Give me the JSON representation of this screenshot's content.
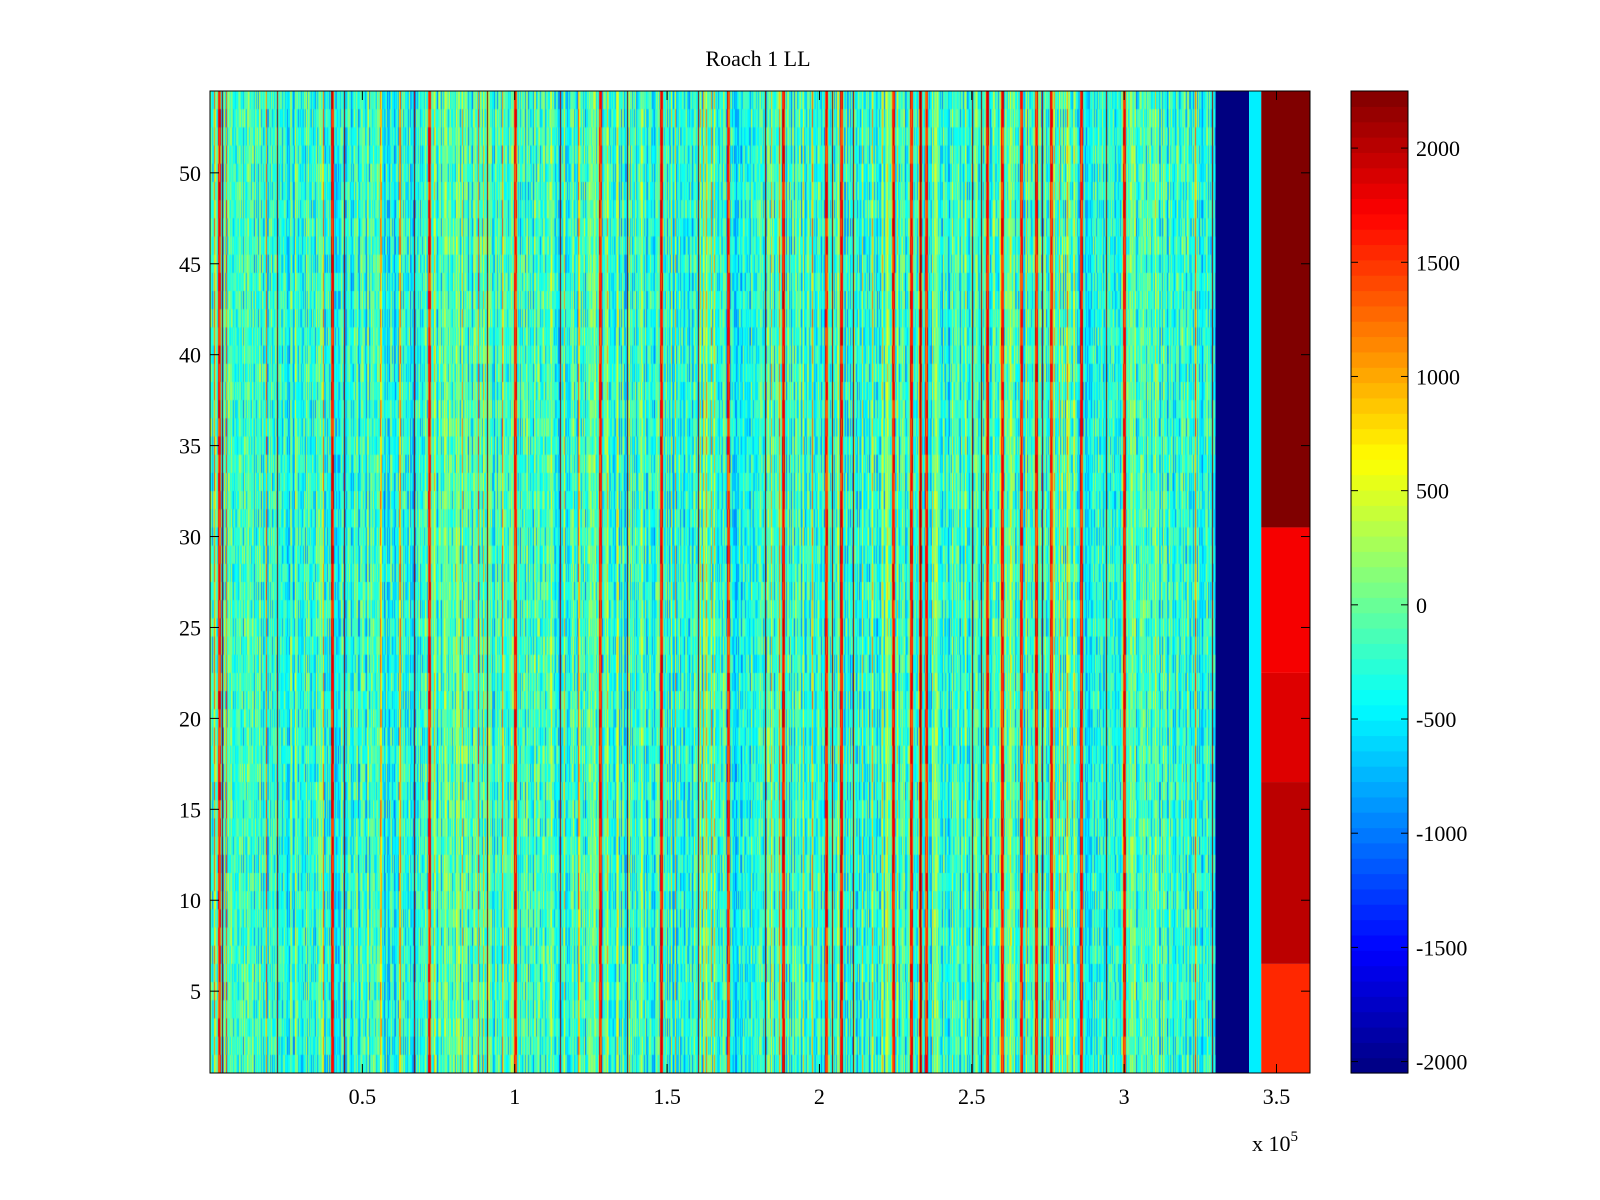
{
  "chart_data": {
    "type": "heatmap",
    "title": "Roach 1 LL",
    "xlabel": "",
    "ylabel": "",
    "x_exponent_label": "x 10",
    "x_exponent": "5",
    "x_range": [
      0,
      3.61
    ],
    "y_range": [
      0.5,
      54.5
    ],
    "x_ticks": [
      0.5,
      1,
      1.5,
      2,
      2.5,
      3,
      3.5
    ],
    "x_tick_labels": [
      "0.5",
      "1",
      "1.5",
      "2",
      "2.5",
      "3",
      "3.5"
    ],
    "y_ticks": [
      5,
      10,
      15,
      20,
      25,
      30,
      35,
      40,
      45,
      50
    ],
    "y_tick_labels": [
      "5",
      "10",
      "15",
      "20",
      "25",
      "30",
      "35",
      "40",
      "45",
      "50"
    ],
    "rows": 54,
    "colormap": "jet",
    "color_range": [
      -2050,
      2250
    ],
    "colorbar_ticks": [
      -2000,
      -1500,
      -1000,
      -500,
      0,
      500,
      1000,
      1500,
      2000
    ],
    "colorbar_tick_labels": [
      "-2000",
      "-1500",
      "-1000",
      "-500",
      "0",
      "500",
      "1000",
      "1500",
      "2000"
    ],
    "background_value": -250,
    "dark_vertical_lines_x": [
      0.04,
      0.22,
      0.44,
      0.67,
      0.91,
      1.15,
      1.37,
      1.6,
      1.82,
      2.04,
      2.11,
      2.33,
      2.5,
      2.53,
      2.73,
      2.94,
      3.29
    ],
    "hot_vertical_lines_x": [
      0.03,
      0.4,
      0.72,
      1.0,
      1.28,
      1.48,
      1.7,
      1.88,
      2.02,
      2.07,
      2.24,
      2.3,
      2.33,
      2.35,
      2.55,
      2.6,
      2.66,
      2.71,
      2.76,
      2.86,
      3.0
    ],
    "blue_band": {
      "x": [
        3.3,
        3.41
      ],
      "value": -2050
    },
    "gap_band": {
      "x": [
        3.41,
        3.45
      ],
      "value": -500
    },
    "red_band": {
      "x": [
        3.45,
        3.61
      ],
      "rows_bottom_to_top": [
        {
          "y": [
            0.5,
            6.5
          ],
          "value": 1550
        },
        {
          "y": [
            6.5,
            16.5
          ],
          "value": 2000
        },
        {
          "y": [
            16.5,
            22.5
          ],
          "value": 1850
        },
        {
          "y": [
            22.5,
            30.5
          ],
          "value": 1750
        },
        {
          "y": [
            30.5,
            54.5
          ],
          "value": 2250
        }
      ]
    }
  }
}
